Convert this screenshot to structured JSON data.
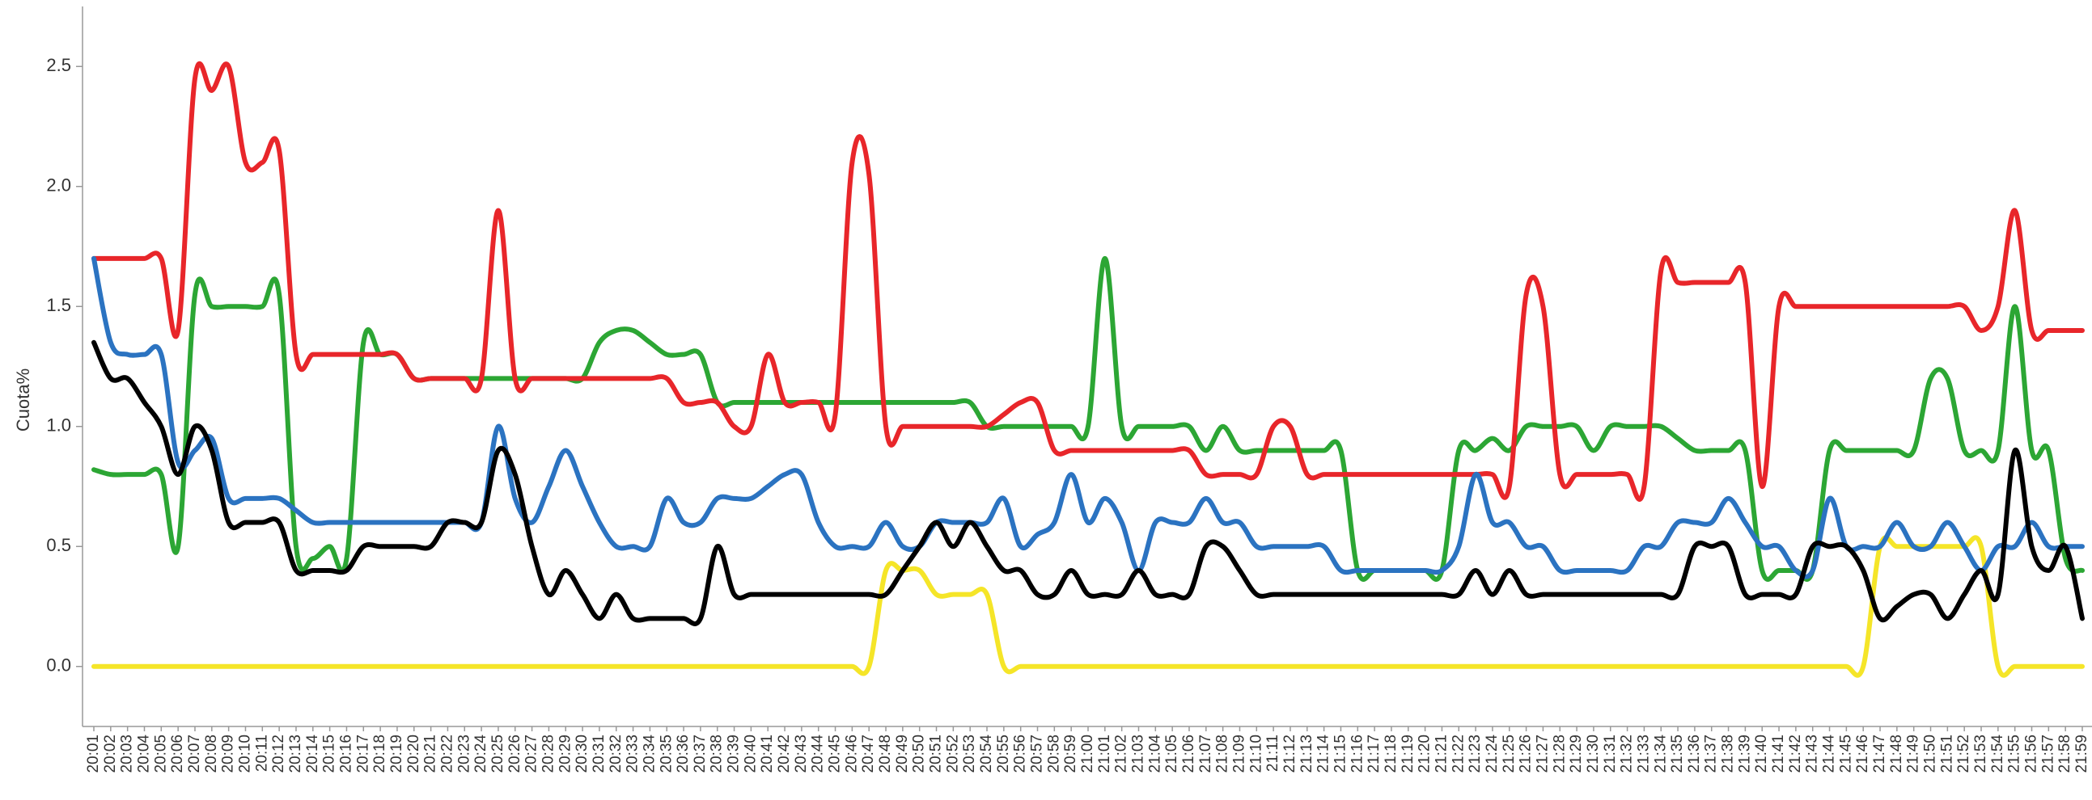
{
  "chart_data": {
    "type": "line",
    "y_label": "Cuota%",
    "categories": [
      "20:01",
      "20:02",
      "20:03",
      "20:04",
      "20:05",
      "20:06",
      "20:07",
      "20:08",
      "20:09",
      "20:10",
      "20:11",
      "20:12",
      "20:13",
      "20:14",
      "20:15",
      "20:16",
      "20:17",
      "20:18",
      "20:19",
      "20:20",
      "20:21",
      "20:22",
      "20:23",
      "20:24",
      "20:25",
      "20:26",
      "20:27",
      "20:28",
      "20:29",
      "20:30",
      "20:31",
      "20:32",
      "20:33",
      "20:34",
      "20:35",
      "20:36",
      "20:37",
      "20:38",
      "20:39",
      "20:40",
      "20:41",
      "20:42",
      "20:43",
      "20:44",
      "20:45",
      "20:46",
      "20:47",
      "20:48",
      "20:49",
      "20:50",
      "20:51",
      "20:52",
      "20:53",
      "20:54",
      "20:55",
      "20:56",
      "20:57",
      "20:58",
      "20:59",
      "21:00",
      "21:01",
      "21:02",
      "21:03",
      "21:04",
      "21:05",
      "21:06",
      "21:07",
      "21:08",
      "21:09",
      "21:10",
      "21:11",
      "21:12",
      "21:13",
      "21:14",
      "21:15",
      "21:16",
      "21:17",
      "21:18",
      "21:19",
      "21:20",
      "21:21",
      "21:22",
      "21:23",
      "21:24",
      "21:25",
      "21:26",
      "21:27",
      "21:28",
      "21:29",
      "21:30",
      "21:31",
      "21:32",
      "21:33",
      "21:34",
      "21:35",
      "21:36",
      "21:37",
      "21:38",
      "21:39",
      "21:40",
      "21:41",
      "21:42",
      "21:43",
      "21:44",
      "21:45",
      "21:46",
      "21:47",
      "21:48",
      "21:49",
      "21:50",
      "21:51",
      "21:52",
      "21:53",
      "21:54",
      "21:55",
      "21:56",
      "21:57",
      "21:58",
      "21:59"
    ],
    "ylim": [
      -0.25,
      2.75
    ],
    "yticks": [
      {
        "value": 0,
        "label": "0.0"
      },
      {
        "value": 0.5,
        "label": "0.5"
      },
      {
        "value": 1,
        "label": "1.0"
      },
      {
        "value": 1.5,
        "label": "1.5"
      },
      {
        "value": 2,
        "label": "2.0"
      },
      {
        "value": 2.5,
        "label": "2.5"
      }
    ],
    "grid": false,
    "series": [
      {
        "color": "#f5e528",
        "values": [
          0,
          0,
          0,
          0,
          0,
          0,
          0,
          0,
          0,
          0,
          0,
          0,
          0,
          0,
          0,
          0,
          0,
          0,
          0,
          0,
          0,
          0,
          0,
          0,
          0,
          0,
          0,
          0,
          0,
          0,
          0,
          0,
          0,
          0,
          0,
          0,
          0,
          0,
          0,
          0,
          0,
          0,
          0,
          0,
          0,
          0,
          0,
          0.4,
          0.4,
          0.4,
          0.3,
          0.3,
          0.3,
          0.3,
          0,
          0,
          0,
          0,
          0,
          0,
          0,
          0,
          0,
          0,
          0,
          0,
          0,
          0,
          0,
          0,
          0,
          0,
          0,
          0,
          0,
          0,
          0,
          0,
          0,
          0,
          0,
          0,
          0,
          0,
          0,
          0,
          0,
          0,
          0,
          0,
          0,
          0,
          0,
          0,
          0,
          0,
          0,
          0,
          0,
          0,
          0,
          0,
          0,
          0,
          0,
          0,
          0.5,
          0.5,
          0.5,
          0.5,
          0.5,
          0.5,
          0.5,
          0,
          0,
          0,
          0,
          0,
          0
        ]
      },
      {
        "color": "#2ca634",
        "values": [
          0.82,
          0.8,
          0.8,
          0.8,
          0.8,
          0.5,
          1.55,
          1.5,
          1.5,
          1.5,
          1.5,
          1.55,
          0.5,
          0.45,
          0.5,
          0.45,
          1.35,
          1.3,
          1.3,
          1.2,
          1.2,
          1.2,
          1.2,
          1.2,
          1.2,
          1.2,
          1.2,
          1.2,
          1.2,
          1.2,
          1.35,
          1.4,
          1.4,
          1.35,
          1.3,
          1.3,
          1.3,
          1.1,
          1.1,
          1.1,
          1.1,
          1.1,
          1.1,
          1.1,
          1.1,
          1.1,
          1.1,
          1.1,
          1.1,
          1.1,
          1.1,
          1.1,
          1.1,
          1.0,
          1.0,
          1.0,
          1.0,
          1.0,
          1.0,
          1.0,
          1.7,
          1.0,
          1.0,
          1.0,
          1.0,
          1.0,
          0.9,
          1.0,
          0.9,
          0.9,
          0.9,
          0.9,
          0.9,
          0.9,
          0.9,
          0.4,
          0.4,
          0.4,
          0.4,
          0.4,
          0.4,
          0.9,
          0.9,
          0.95,
          0.9,
          1.0,
          1.0,
          1.0,
          1.0,
          0.9,
          1.0,
          1.0,
          1.0,
          1.0,
          0.95,
          0.9,
          0.9,
          0.9,
          0.9,
          0.4,
          0.4,
          0.4,
          0.4,
          0.9,
          0.9,
          0.9,
          0.9,
          0.9,
          0.9,
          1.2,
          1.2,
          0.9,
          0.9,
          0.9,
          1.5,
          0.9,
          0.9,
          0.45,
          0.4
        ]
      },
      {
        "color": "#e8262a",
        "values": [
          1.7,
          1.7,
          1.7,
          1.7,
          1.7,
          1.4,
          2.45,
          2.4,
          2.5,
          2.1,
          2.1,
          2.15,
          1.3,
          1.3,
          1.3,
          1.3,
          1.3,
          1.3,
          1.3,
          1.2,
          1.2,
          1.2,
          1.2,
          1.2,
          1.9,
          1.2,
          1.2,
          1.2,
          1.2,
          1.2,
          1.2,
          1.2,
          1.2,
          1.2,
          1.2,
          1.1,
          1.1,
          1.1,
          1.0,
          1.0,
          1.3,
          1.1,
          1.1,
          1.1,
          1.05,
          2.1,
          2.05,
          1.0,
          1.0,
          1.0,
          1.0,
          1.0,
          1.0,
          1.0,
          1.05,
          1.1,
          1.1,
          0.9,
          0.9,
          0.9,
          0.9,
          0.9,
          0.9,
          0.9,
          0.9,
          0.9,
          0.8,
          0.8,
          0.8,
          0.8,
          1.0,
          1.0,
          0.8,
          0.8,
          0.8,
          0.8,
          0.8,
          0.8,
          0.8,
          0.8,
          0.8,
          0.8,
          0.8,
          0.8,
          0.75,
          1.55,
          1.5,
          0.8,
          0.8,
          0.8,
          0.8,
          0.8,
          0.75,
          1.65,
          1.6,
          1.6,
          1.6,
          1.6,
          1.6,
          0.75,
          1.5,
          1.5,
          1.5,
          1.5,
          1.5,
          1.5,
          1.5,
          1.5,
          1.5,
          1.5,
          1.5,
          1.5,
          1.4,
          1.5,
          1.9,
          1.4,
          1.4,
          1.4,
          1.4
        ]
      },
      {
        "color": "#2b73c1",
        "values": [
          1.7,
          1.35,
          1.3,
          1.3,
          1.3,
          0.85,
          0.9,
          0.95,
          0.7,
          0.7,
          0.7,
          0.7,
          0.65,
          0.6,
          0.6,
          0.6,
          0.6,
          0.6,
          0.6,
          0.6,
          0.6,
          0.6,
          0.6,
          0.6,
          1.0,
          0.7,
          0.6,
          0.75,
          0.9,
          0.75,
          0.6,
          0.5,
          0.5,
          0.5,
          0.7,
          0.6,
          0.6,
          0.7,
          0.7,
          0.7,
          0.75,
          0.8,
          0.8,
          0.6,
          0.5,
          0.5,
          0.5,
          0.6,
          0.5,
          0.5,
          0.6,
          0.6,
          0.6,
          0.6,
          0.7,
          0.5,
          0.55,
          0.6,
          0.8,
          0.6,
          0.7,
          0.6,
          0.4,
          0.6,
          0.6,
          0.6,
          0.7,
          0.6,
          0.6,
          0.5,
          0.5,
          0.5,
          0.5,
          0.5,
          0.4,
          0.4,
          0.4,
          0.4,
          0.4,
          0.4,
          0.4,
          0.5,
          0.8,
          0.6,
          0.6,
          0.5,
          0.5,
          0.4,
          0.4,
          0.4,
          0.4,
          0.4,
          0.5,
          0.5,
          0.6,
          0.6,
          0.6,
          0.7,
          0.6,
          0.5,
          0.5,
          0.4,
          0.4,
          0.7,
          0.5,
          0.5,
          0.5,
          0.6,
          0.5,
          0.5,
          0.6,
          0.5,
          0.4,
          0.5,
          0.5,
          0.6,
          0.5,
          0.5,
          0.5
        ]
      },
      {
        "color": "#000000",
        "values": [
          1.35,
          1.2,
          1.2,
          1.1,
          1.0,
          0.8,
          1.0,
          0.9,
          0.6,
          0.6,
          0.6,
          0.6,
          0.4,
          0.4,
          0.4,
          0.4,
          0.5,
          0.5,
          0.5,
          0.5,
          0.5,
          0.6,
          0.6,
          0.6,
          0.9,
          0.8,
          0.5,
          0.3,
          0.4,
          0.3,
          0.2,
          0.3,
          0.2,
          0.2,
          0.2,
          0.2,
          0.2,
          0.5,
          0.3,
          0.3,
          0.3,
          0.3,
          0.3,
          0.3,
          0.3,
          0.3,
          0.3,
          0.3,
          0.4,
          0.5,
          0.6,
          0.5,
          0.6,
          0.5,
          0.4,
          0.4,
          0.3,
          0.3,
          0.4,
          0.3,
          0.3,
          0.3,
          0.4,
          0.3,
          0.3,
          0.3,
          0.5,
          0.5,
          0.4,
          0.3,
          0.3,
          0.3,
          0.3,
          0.3,
          0.3,
          0.3,
          0.3,
          0.3,
          0.3,
          0.3,
          0.3,
          0.3,
          0.4,
          0.3,
          0.4,
          0.3,
          0.3,
          0.3,
          0.3,
          0.3,
          0.3,
          0.3,
          0.3,
          0.3,
          0.3,
          0.5,
          0.5,
          0.5,
          0.3,
          0.3,
          0.3,
          0.3,
          0.5,
          0.5,
          0.5,
          0.4,
          0.2,
          0.25,
          0.3,
          0.3,
          0.2,
          0.3,
          0.4,
          0.3,
          0.9,
          0.5,
          0.4,
          0.5,
          0.2
        ]
      }
    ]
  }
}
